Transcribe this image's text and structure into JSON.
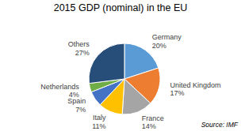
{
  "chart_data": {
    "type": "pie",
    "title": "2015 GDP (nominal) in the EU",
    "categories": [
      "Germany",
      "United Kingdom",
      "France",
      "Italy",
      "Spain",
      "Netherlands",
      "Others"
    ],
    "values": [
      20,
      17,
      14,
      11,
      7,
      4,
      27
    ],
    "value_labels": [
      "20%",
      "17%",
      "14%",
      "11%",
      "7%",
      "4%",
      "27%"
    ],
    "colors": [
      "#5b9bd5",
      "#ed7d31",
      "#a5a5a5",
      "#ffc000",
      "#4472c4",
      "#70ad47",
      "#264e79"
    ],
    "data_labels": true,
    "annotations": [
      "Source: IMF"
    ]
  }
}
